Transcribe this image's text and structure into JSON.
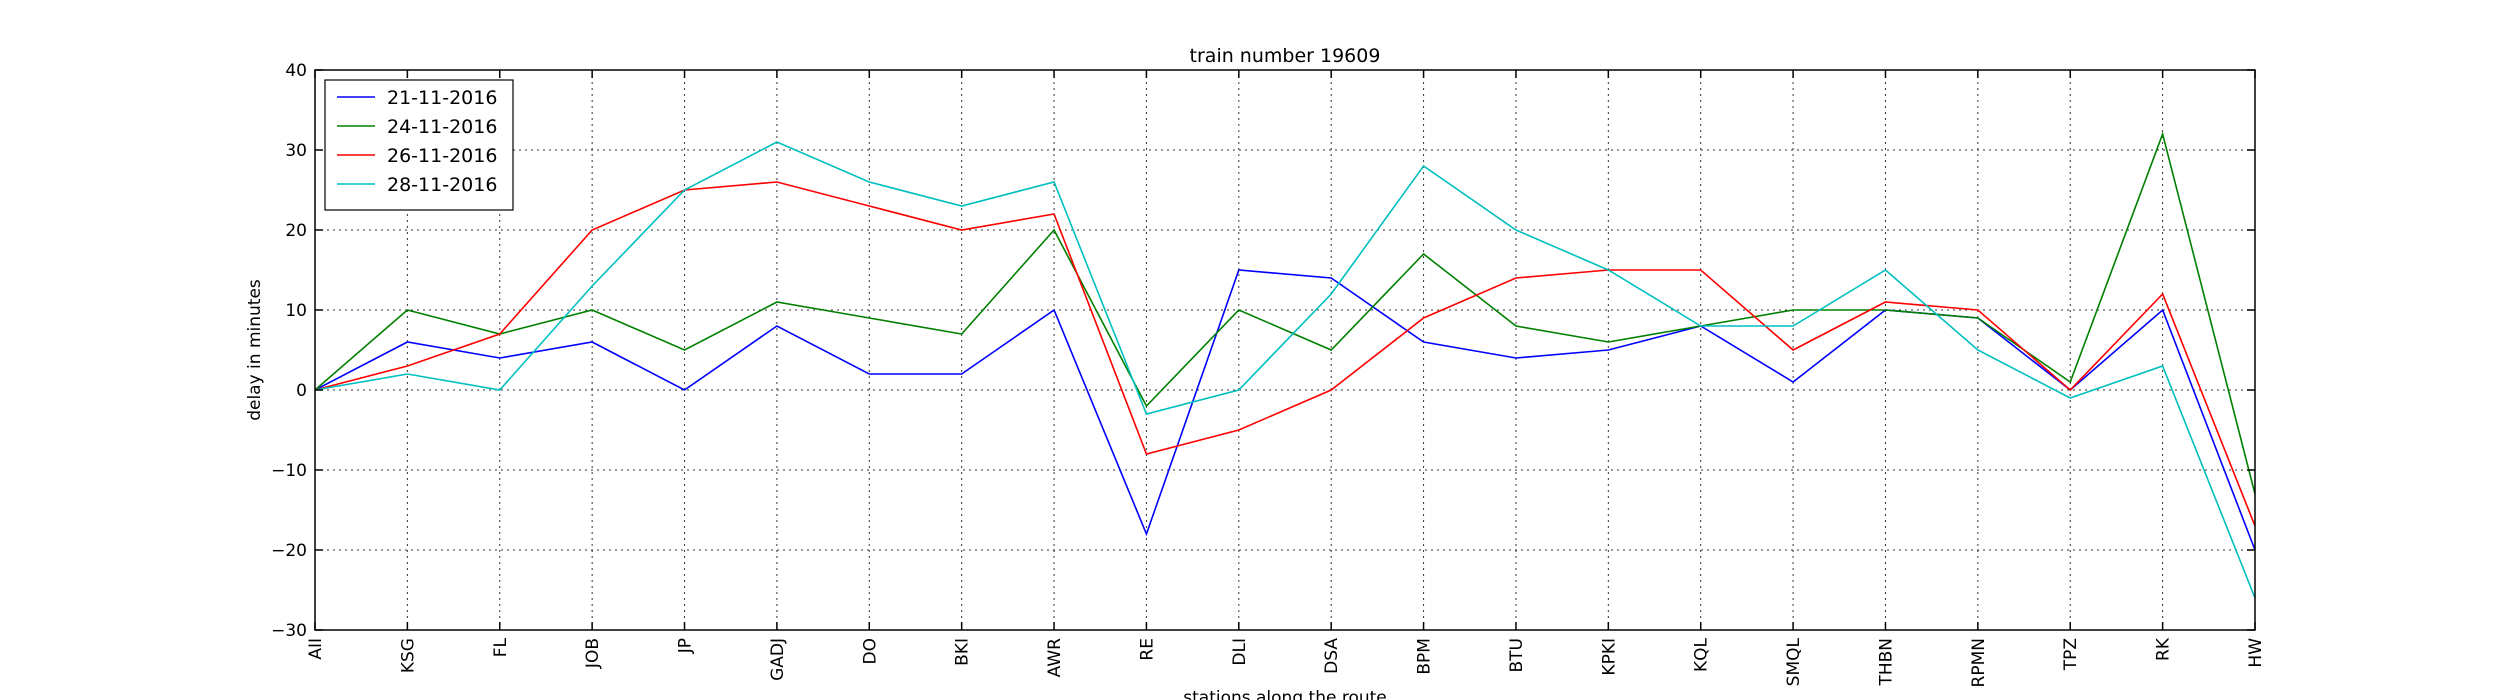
{
  "chart_data": {
    "type": "line",
    "title": "train number 19609",
    "xlabel": "stations along the route",
    "ylabel": "delay in minutes",
    "ylim": [
      -30,
      40
    ],
    "yticks": [
      -30,
      -20,
      -10,
      0,
      10,
      20,
      30,
      40
    ],
    "ytick_labels": [
      "−30",
      "−20",
      "−10",
      "0",
      "10",
      "20",
      "30",
      "40"
    ],
    "grid": true,
    "legend_position": "top-left",
    "categories": [
      "AII",
      "KSG",
      "FL",
      "JOB",
      "JP",
      "GADJ",
      "DO",
      "BKI",
      "AWR",
      "RE",
      "DLI",
      "DSA",
      "BPM",
      "BTU",
      "KPKI",
      "KQL",
      "SMQL",
      "THBN",
      "RPMN",
      "TPZ",
      "RK",
      "HW"
    ],
    "series": [
      {
        "name": "21-11-2016",
        "color": "#0000ff",
        "values": [
          0,
          6,
          4,
          6,
          0,
          8,
          2,
          2,
          10,
          -18,
          15,
          14,
          6,
          4,
          5,
          8,
          1,
          10,
          9,
          0,
          10,
          -20
        ]
      },
      {
        "name": "24-11-2016",
        "color": "#008000",
        "values": [
          0,
          10,
          7,
          10,
          5,
          11,
          9,
          7,
          20,
          -2,
          10,
          5,
          17,
          8,
          6,
          8,
          10,
          10,
          9,
          1,
          32,
          -13
        ]
      },
      {
        "name": "26-11-2016",
        "color": "#ff0000",
        "values": [
          0,
          3,
          7,
          20,
          25,
          26,
          23,
          20,
          22,
          -8,
          -5,
          0,
          9,
          14,
          15,
          15,
          5,
          11,
          10,
          0,
          12,
          -17
        ]
      },
      {
        "name": "28-11-2016",
        "color": "#00bfbf",
        "values": [
          0,
          2,
          0,
          13,
          25,
          31,
          26,
          23,
          26,
          -3,
          0,
          12,
          28,
          20,
          15,
          8,
          8,
          15,
          5,
          -1,
          3,
          -26
        ]
      }
    ]
  }
}
